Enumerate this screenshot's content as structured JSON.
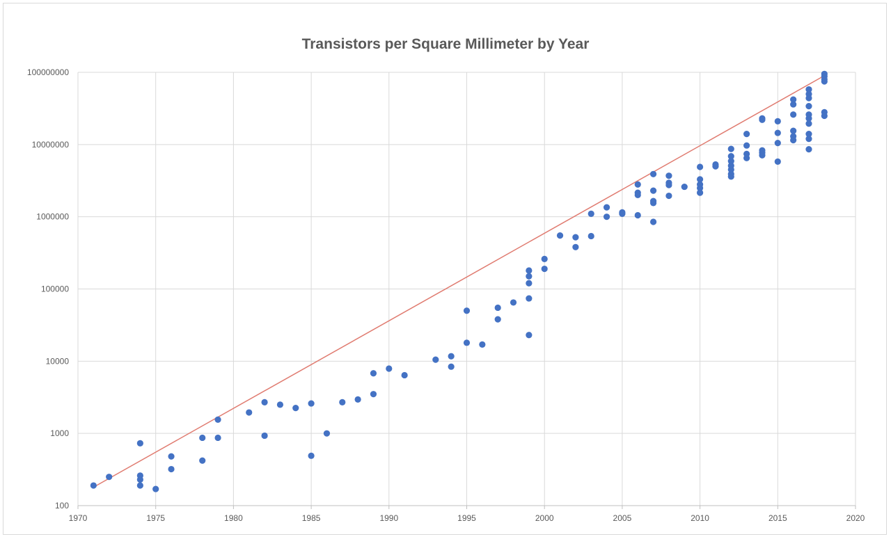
{
  "chart_data": {
    "type": "scatter",
    "title": "Transistors per Square Millimeter by Year",
    "xlabel": "",
    "ylabel": "",
    "xlim": [
      1970,
      2020
    ],
    "ylim": [
      100,
      100000000
    ],
    "yscale": "log",
    "grid": true,
    "legend": "none",
    "x_ticks": [
      "1970",
      "1975",
      "1980",
      "1985",
      "1990",
      "1995",
      "2000",
      "2005",
      "2010",
      "2015",
      "2020"
    ],
    "y_ticks": [
      "100",
      "1000",
      "10000",
      "100000",
      "1000000",
      "10000000",
      "100000000"
    ],
    "colors": {
      "points": "#4472c4",
      "trendline": "#e07b70",
      "grid": "#d9d9d9"
    },
    "trendline": {
      "x": [
        1971,
        2018
      ],
      "y": [
        180,
        90000000
      ]
    },
    "series": [
      {
        "points": [
          [
            1971,
            190
          ],
          [
            1972,
            250
          ],
          [
            1974,
            730
          ],
          [
            1974,
            260
          ],
          [
            1974,
            230
          ],
          [
            1974,
            190
          ],
          [
            1975,
            170
          ],
          [
            1976,
            480
          ],
          [
            1976,
            320
          ],
          [
            1978,
            870
          ],
          [
            1978,
            420
          ],
          [
            1979,
            1550
          ],
          [
            1979,
            870
          ],
          [
            1981,
            1950
          ],
          [
            1982,
            2700
          ],
          [
            1982,
            930
          ],
          [
            1983,
            2500
          ],
          [
            1984,
            2250
          ],
          [
            1985,
            2600
          ],
          [
            1985,
            490
          ],
          [
            1986,
            1000
          ],
          [
            1987,
            2700
          ],
          [
            1988,
            2950
          ],
          [
            1989,
            6800
          ],
          [
            1989,
            3500
          ],
          [
            1990,
            7900
          ],
          [
            1991,
            6400
          ],
          [
            1993,
            10500
          ],
          [
            1994,
            11700
          ],
          [
            1994,
            8400
          ],
          [
            1995,
            50000
          ],
          [
            1995,
            18000
          ],
          [
            1996,
            17000
          ],
          [
            1997,
            55000
          ],
          [
            1997,
            38000
          ],
          [
            1998,
            65000
          ],
          [
            1999,
            180000
          ],
          [
            1999,
            150000
          ],
          [
            1999,
            120000
          ],
          [
            1999,
            74000
          ],
          [
            1999,
            23000
          ],
          [
            2000,
            260000
          ],
          [
            2000,
            190000
          ],
          [
            2001,
            550000
          ],
          [
            2002,
            520000
          ],
          [
            2002,
            380000
          ],
          [
            2003,
            1100000
          ],
          [
            2003,
            540000
          ],
          [
            2004,
            1350000
          ],
          [
            2004,
            1000000
          ],
          [
            2005,
            1150000
          ],
          [
            2005,
            1100000
          ],
          [
            2006,
            2800000
          ],
          [
            2006,
            2150000
          ],
          [
            2006,
            2000000
          ],
          [
            2006,
            1050000
          ],
          [
            2007,
            3900000
          ],
          [
            2007,
            2300000
          ],
          [
            2007,
            1650000
          ],
          [
            2007,
            1550000
          ],
          [
            2007,
            850000
          ],
          [
            2008,
            3700000
          ],
          [
            2008,
            2950000
          ],
          [
            2008,
            2750000
          ],
          [
            2008,
            1950000
          ],
          [
            2009,
            2600000
          ],
          [
            2010,
            4900000
          ],
          [
            2010,
            3300000
          ],
          [
            2010,
            2800000
          ],
          [
            2010,
            2500000
          ],
          [
            2010,
            2150000
          ],
          [
            2011,
            5300000
          ],
          [
            2011,
            5000000
          ],
          [
            2012,
            8700000
          ],
          [
            2012,
            6900000
          ],
          [
            2012,
            5900000
          ],
          [
            2012,
            5100000
          ],
          [
            2012,
            4500000
          ],
          [
            2012,
            3900000
          ],
          [
            2012,
            3600000
          ],
          [
            2013,
            14000000
          ],
          [
            2013,
            9700000
          ],
          [
            2013,
            7400000
          ],
          [
            2013,
            6500000
          ],
          [
            2014,
            23000000
          ],
          [
            2014,
            22000000
          ],
          [
            2014,
            8300000
          ],
          [
            2014,
            7700000
          ],
          [
            2014,
            7100000
          ],
          [
            2015,
            21000000
          ],
          [
            2015,
            14500000
          ],
          [
            2015,
            10500000
          ],
          [
            2015,
            5800000
          ],
          [
            2016,
            42000000
          ],
          [
            2016,
            36000000
          ],
          [
            2016,
            26000000
          ],
          [
            2016,
            15500000
          ],
          [
            2016,
            13000000
          ],
          [
            2016,
            11500000
          ],
          [
            2017,
            58000000
          ],
          [
            2017,
            50000000
          ],
          [
            2017,
            44000000
          ],
          [
            2017,
            34000000
          ],
          [
            2017,
            26000000
          ],
          [
            2017,
            23000000
          ],
          [
            2017,
            19500000
          ],
          [
            2017,
            14000000
          ],
          [
            2017,
            12000000
          ],
          [
            2017,
            8600000
          ],
          [
            2018,
            95000000
          ],
          [
            2018,
            88000000
          ],
          [
            2018,
            80000000
          ],
          [
            2018,
            75000000
          ],
          [
            2018,
            28000000
          ],
          [
            2018,
            25000000
          ]
        ]
      }
    ]
  }
}
